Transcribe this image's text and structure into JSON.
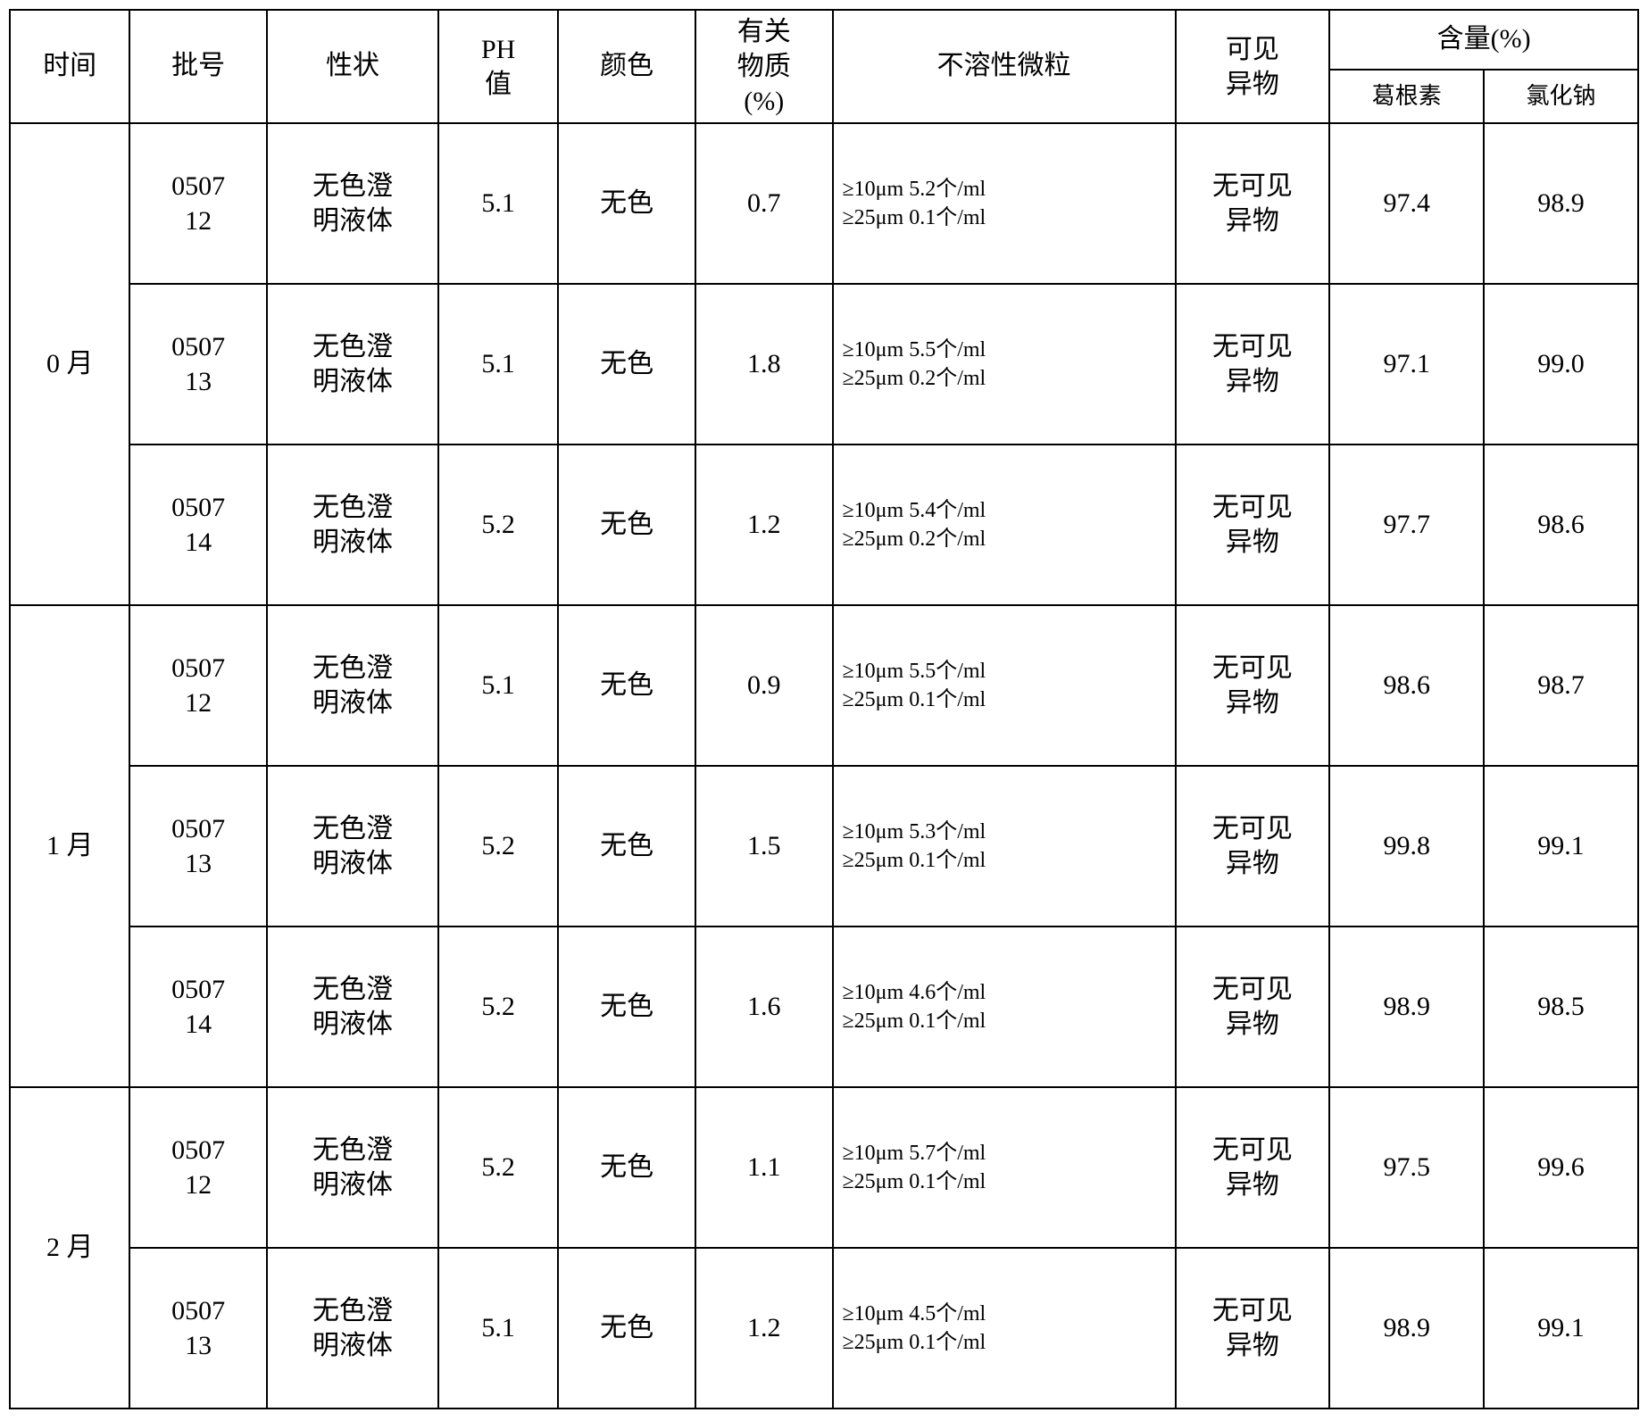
{
  "headers": {
    "time": "时间",
    "batch": "批号",
    "trait": "性状",
    "ph": "PH<br>值",
    "color": "颜色",
    "related": "有关<br>物质<br>(%)",
    "particles": "不溶性微粒",
    "visible": "可见<br>异物",
    "content": "含量(%)",
    "content_a": "葛根素",
    "content_b": "氯化钠"
  },
  "groups": [
    {
      "time": "0 月",
      "rows": [
        {
          "batch": "0507<br>12",
          "trait": "无色澄<br>明液体",
          "ph": "5.1",
          "color": "无色",
          "related": "0.7",
          "particles": "≥10μm 5.2个/ml<br>≥25μm 0.1个/ml",
          "visible": "无可见<br>异物",
          "c1": "97.4",
          "c2": "98.9"
        },
        {
          "batch": "0507<br>13",
          "trait": "无色澄<br>明液体",
          "ph": "5.1",
          "color": "无色",
          "related": "1.8",
          "particles": "≥10μm 5.5个/ml<br>≥25μm 0.2个/ml",
          "visible": "无可见<br>异物",
          "c1": "97.1",
          "c2": "99.0"
        },
        {
          "batch": "0507<br>14",
          "trait": "无色澄<br>明液体",
          "ph": "5.2",
          "color": "无色",
          "related": "1.2",
          "particles": "≥10μm 5.4个/ml<br>≥25μm 0.2个/ml",
          "visible": "无可见<br>异物",
          "c1": "97.7",
          "c2": "98.6"
        }
      ]
    },
    {
      "time": "1 月",
      "rows": [
        {
          "batch": "0507<br>12",
          "trait": "无色澄<br>明液体",
          "ph": "5.1",
          "color": "无色",
          "related": "0.9",
          "particles": "≥10μm 5.5个/ml<br>≥25μm 0.1个/ml",
          "visible": "无可见<br>异物",
          "c1": "98.6",
          "c2": "98.7"
        },
        {
          "batch": "0507<br>13",
          "trait": "无色澄<br>明液体",
          "ph": "5.2",
          "color": "无色",
          "related": "1.5",
          "particles": "≥10μm 5.3个/ml<br>≥25μm 0.1个/ml",
          "visible": "无可见<br>异物",
          "c1": "99.8",
          "c2": "99.1"
        },
        {
          "batch": "0507<br>14",
          "trait": "无色澄<br>明液体",
          "ph": "5.2",
          "color": "无色",
          "related": "1.6",
          "particles": "≥10μm 4.6个/ml<br>≥25μm 0.1个/ml",
          "visible": "无可见<br>异物",
          "c1": "98.9",
          "c2": "98.5"
        }
      ]
    },
    {
      "time": "2 月",
      "rows": [
        {
          "batch": "0507<br>12",
          "trait": "无色澄<br>明液体",
          "ph": "5.2",
          "color": "无色",
          "related": "1.1",
          "particles": "≥10μm 5.7个/ml<br>≥25μm 0.1个/ml",
          "visible": "无可见<br>异物",
          "c1": "97.5",
          "c2": "99.6"
        },
        {
          "batch": "0507<br>13",
          "trait": "无色澄<br>明液体",
          "ph": "5.1",
          "color": "无色",
          "related": "1.2",
          "particles": "≥10μm 4.5个/ml<br>≥25μm 0.1个/ml",
          "visible": "无可见<br>异物",
          "c1": "98.9",
          "c2": "99.1"
        }
      ]
    }
  ]
}
